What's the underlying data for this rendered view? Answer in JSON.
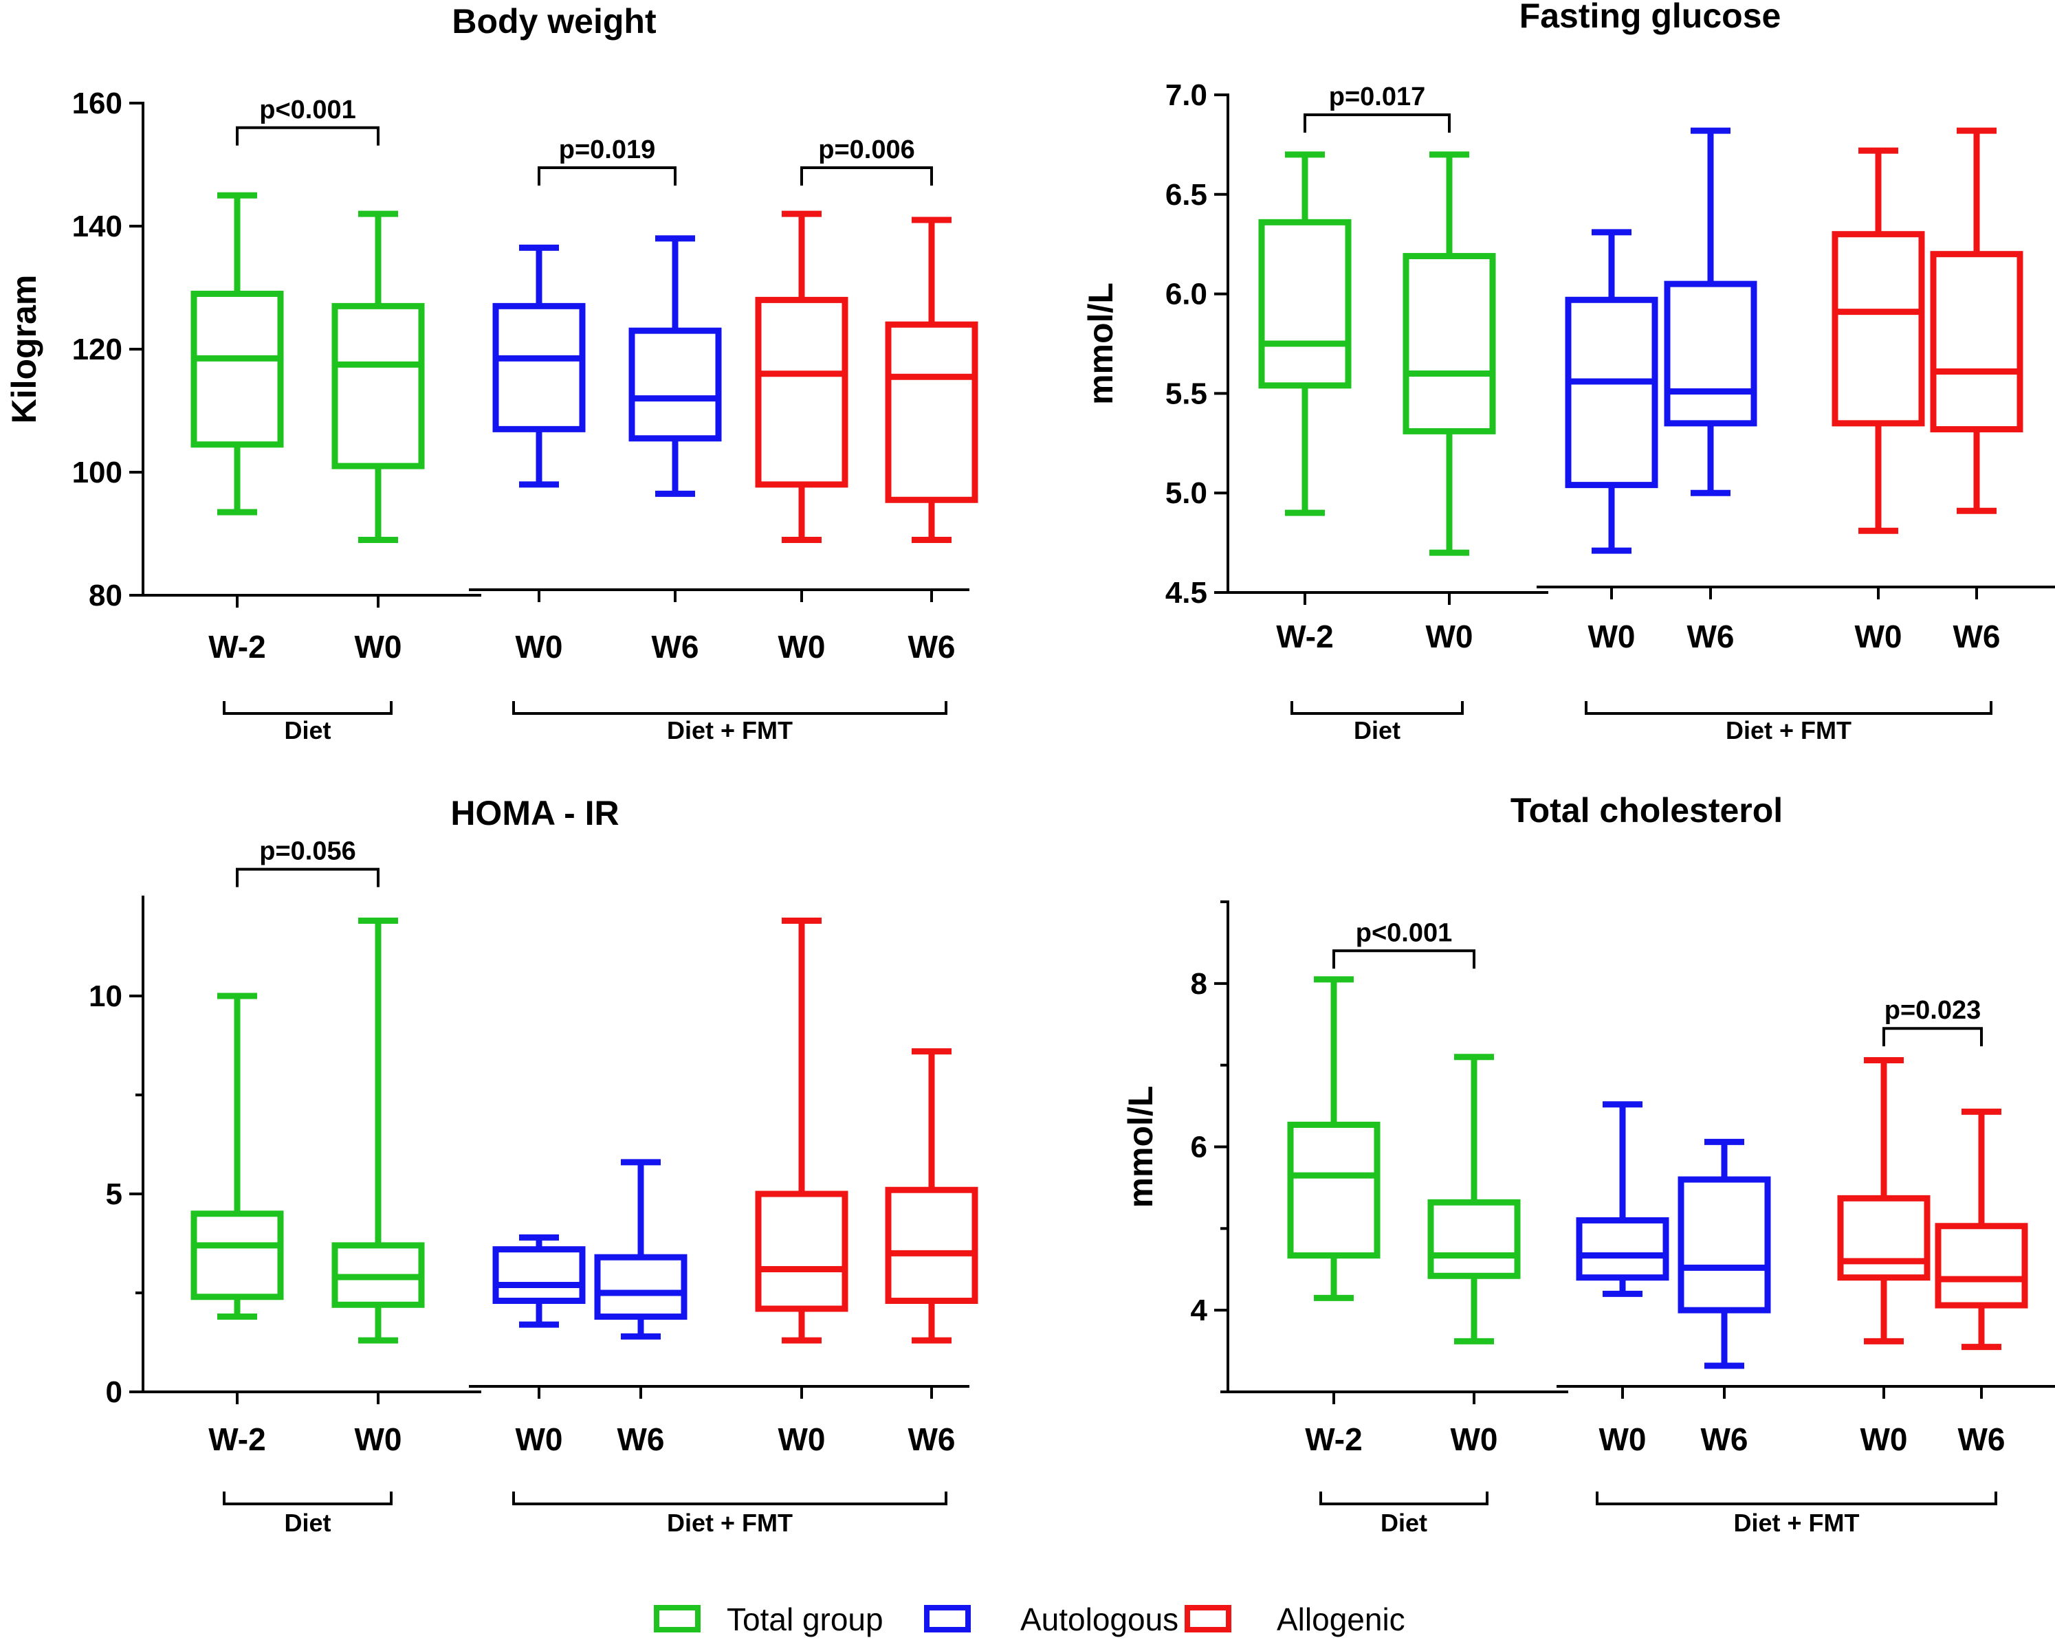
{
  "figure_meta": {
    "series_colors": {
      "Total group": "#1fc31f",
      "Autologous": "#1414f0",
      "Allogenic": "#f01414"
    }
  },
  "legend": {
    "items": [
      {
        "label": "Total group",
        "color": "#1fc31f"
      },
      {
        "label": "Autologous",
        "color": "#1414f0"
      },
      {
        "label": "Allogenic",
        "color": "#f01414"
      }
    ]
  },
  "chart_data": [
    {
      "type": "boxplot",
      "title": "Body weight",
      "ylabel": "Kilogram",
      "xlabel": "",
      "ylim": [
        80,
        160
      ],
      "yticks": [
        80,
        100,
        120,
        140,
        160
      ],
      "minor_ticks": [],
      "categories": [
        "W-2",
        "W0",
        "W0",
        "W6",
        "W0",
        "W6"
      ],
      "groups": [
        {
          "label": "Diet",
          "from": 0,
          "to": 1
        },
        {
          "label": "Diet +  FMT",
          "from": 2,
          "to": 5
        }
      ],
      "boxes": [
        {
          "category": "W-2",
          "series": "Total group",
          "min": 93.5,
          "q1": 104.5,
          "median": 118.5,
          "q3": 129,
          "max": 145
        },
        {
          "category": "W0",
          "series": "Total group",
          "min": 89,
          "q1": 101,
          "median": 117.5,
          "q3": 127,
          "max": 142
        },
        {
          "category": "W0",
          "series": "Autologous",
          "min": 98,
          "q1": 107,
          "median": 118.5,
          "q3": 127,
          "max": 136.5
        },
        {
          "category": "W6",
          "series": "Autologous",
          "min": 96.5,
          "q1": 105.5,
          "median": 112,
          "q3": 123,
          "max": 138
        },
        {
          "category": "W0",
          "series": "Allogenic",
          "min": 89,
          "q1": 98,
          "median": 116,
          "q3": 128,
          "max": 142
        },
        {
          "category": "W6",
          "series": "Allogenic",
          "min": 89,
          "q1": 95.5,
          "median": 115.5,
          "q3": 124,
          "max": 141
        }
      ],
      "annotations": [
        {
          "from": 0,
          "to": 1,
          "text": "p<0.001",
          "level": 156
        },
        {
          "from": 2,
          "to": 3,
          "text": "p=0.019",
          "level": 149.5
        },
        {
          "from": 4,
          "to": 5,
          "text": "p=0.006",
          "level": 149.5
        }
      ]
    },
    {
      "type": "boxplot",
      "title": "Fasting glucose",
      "ylabel": "mmol/L",
      "xlabel": "",
      "ylim": [
        4.5,
        7.0
      ],
      "yticks": [
        "4.5",
        "5.0",
        "5.5",
        "6.0",
        "6.5",
        "7.0"
      ],
      "minor_ticks": [],
      "categories": [
        "W-2",
        "W0",
        "W0",
        "W6",
        "W0",
        "W6"
      ],
      "groups": [
        {
          "label": "Diet",
          "from": 0,
          "to": 1
        },
        {
          "label": "Diet +  FMT",
          "from": 2,
          "to": 5
        }
      ],
      "boxes": [
        {
          "category": "W-2",
          "series": "Total group",
          "min": 4.9,
          "q1": 5.54,
          "median": 5.75,
          "q3": 6.36,
          "max": 6.7
        },
        {
          "category": "W0",
          "series": "Total group",
          "min": 4.7,
          "q1": 5.31,
          "median": 5.6,
          "q3": 6.19,
          "max": 6.7
        },
        {
          "category": "W0",
          "series": "Autologous",
          "min": 4.71,
          "q1": 5.04,
          "median": 5.56,
          "q3": 5.97,
          "max": 6.31
        },
        {
          "category": "W6",
          "series": "Autologous",
          "min": 5.0,
          "q1": 5.35,
          "median": 5.51,
          "q3": 6.05,
          "max": 6.82
        },
        {
          "category": "W0",
          "series": "Allogenic",
          "min": 4.81,
          "q1": 5.35,
          "median": 5.91,
          "q3": 6.3,
          "max": 6.72
        },
        {
          "category": "W6",
          "series": "Allogenic",
          "min": 4.91,
          "q1": 5.32,
          "median": 5.61,
          "q3": 6.2,
          "max": 6.82
        }
      ],
      "annotations": [
        {
          "from": 0,
          "to": 1,
          "text": "p=0.017",
          "level": 6.9
        }
      ]
    },
    {
      "type": "boxplot",
      "title": "HOMA -  IR",
      "ylabel": "",
      "xlabel": "",
      "ylim": [
        0,
        12.5
      ],
      "yticks": [
        0,
        5,
        10
      ],
      "minor_ticks": [
        2.5,
        7.5
      ],
      "categories": [
        "W-2",
        "W0",
        "W0",
        "W6",
        "W0",
        "W6"
      ],
      "groups": [
        {
          "label": "Diet",
          "from": 0,
          "to": 1
        },
        {
          "label": "Diet +  FMT",
          "from": 2,
          "to": 5
        }
      ],
      "boxes": [
        {
          "category": "W-2",
          "series": "Total group",
          "min": 1.9,
          "q1": 2.4,
          "median": 3.7,
          "q3": 4.5,
          "max": 10.0
        },
        {
          "category": "W0",
          "series": "Total group",
          "min": 1.3,
          "q1": 2.2,
          "median": 2.9,
          "q3": 3.7,
          "max": 11.9
        },
        {
          "category": "W0",
          "series": "Autologous",
          "min": 1.7,
          "q1": 2.3,
          "median": 2.7,
          "q3": 3.6,
          "max": 3.9
        },
        {
          "category": "W6",
          "series": "Autologous",
          "min": 1.4,
          "q1": 1.9,
          "median": 2.5,
          "q3": 3.4,
          "max": 5.8
        },
        {
          "category": "W0",
          "series": "Allogenic",
          "min": 1.3,
          "q1": 2.1,
          "median": 3.1,
          "q3": 5.0,
          "max": 11.9
        },
        {
          "category": "W6",
          "series": "Allogenic",
          "min": 1.3,
          "q1": 2.3,
          "median": 3.5,
          "q3": 5.1,
          "max": 8.6
        }
      ],
      "annotations": [
        {
          "from": 0,
          "to": 1,
          "text": "p=0.056",
          "level": 13.2
        }
      ]
    },
    {
      "type": "boxplot",
      "title": "Total  cholesterol",
      "ylabel": "mmol/L",
      "xlabel": "",
      "ylim": [
        3.0,
        9.0
      ],
      "yticks": [
        4,
        6,
        8
      ],
      "minor_ticks": [
        3,
        5,
        7,
        9
      ],
      "categories": [
        "W-2",
        "W0",
        "W0",
        "W6",
        "W0",
        "W6"
      ],
      "groups": [
        {
          "label": "Diet",
          "from": 0,
          "to": 1
        },
        {
          "label": "Diet +  FMT",
          "from": 2,
          "to": 5
        }
      ],
      "boxes": [
        {
          "category": "W-2",
          "series": "Total group",
          "min": 4.15,
          "q1": 4.67,
          "median": 5.65,
          "q3": 6.27,
          "max": 8.05
        },
        {
          "category": "W0",
          "series": "Total group",
          "min": 3.62,
          "q1": 4.42,
          "median": 4.67,
          "q3": 5.32,
          "max": 7.1
        },
        {
          "category": "W0",
          "series": "Autologous",
          "min": 4.2,
          "q1": 4.4,
          "median": 4.67,
          "q3": 5.1,
          "max": 6.52
        },
        {
          "category": "W6",
          "series": "Autologous",
          "min": 3.32,
          "q1": 4.0,
          "median": 4.52,
          "q3": 5.6,
          "max": 6.06
        },
        {
          "category": "W0",
          "series": "Allogenic",
          "min": 3.62,
          "q1": 4.4,
          "median": 4.6,
          "q3": 5.37,
          "max": 7.06
        },
        {
          "category": "W6",
          "series": "Allogenic",
          "min": 3.55,
          "q1": 4.06,
          "median": 4.38,
          "q3": 5.03,
          "max": 6.43
        }
      ],
      "annotations": [
        {
          "from": 0,
          "to": 1,
          "text": "p<0.001",
          "level": 8.4
        },
        {
          "from": 4,
          "to": 5,
          "text": "p=0.023",
          "level": 7.45
        }
      ]
    }
  ]
}
